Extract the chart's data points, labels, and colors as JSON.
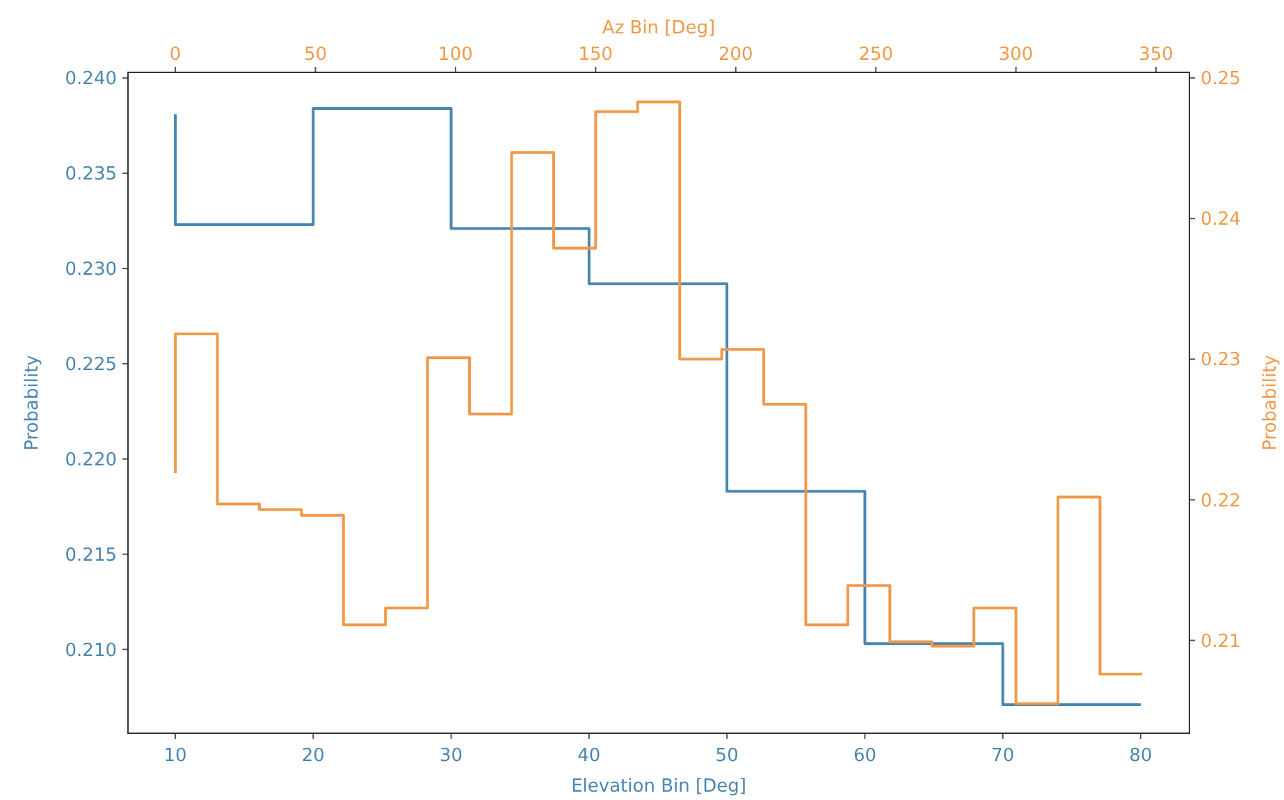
{
  "chart_data": [
    {
      "type": "step",
      "xlabel": "Elevation Bin [Deg]",
      "ylabel": "Probability",
      "xlim": [
        6.57,
        83.53
      ],
      "xticks": [
        10,
        20,
        30,
        40,
        50,
        60,
        70,
        80
      ],
      "ylim": [
        0.2056,
        0.2403
      ],
      "yticks": [
        {
          "value": 0.21,
          "label": "0.210"
        },
        {
          "value": 0.215,
          "label": "0.215"
        },
        {
          "value": 0.22,
          "label": "0.220"
        },
        {
          "value": 0.225,
          "label": "0.225"
        },
        {
          "value": 0.23,
          "label": "0.230"
        },
        {
          "value": 0.235,
          "label": "0.235"
        },
        {
          "value": 0.24,
          "label": "0.240"
        }
      ],
      "series": [
        {
          "color": "#4a87b0",
          "x": [
            10,
            20,
            30,
            40,
            50,
            60,
            70,
            80
          ],
          "values": [
            0.2381,
            0.2323,
            0.2384,
            0.2321,
            0.2292,
            0.2183,
            0.2103,
            0.2071
          ]
        }
      ]
    },
    {
      "type": "step",
      "xlabel": "Az Bin [Deg]",
      "ylabel": "Probability",
      "xlim": [
        -16.9,
        361.9
      ],
      "xticks": [
        0,
        50,
        100,
        150,
        200,
        250,
        300,
        350
      ],
      "ylim": [
        0.2034,
        0.2504
      ],
      "yticks": [
        0.21,
        0.22,
        0.23,
        0.24,
        0.25
      ],
      "series": [
        {
          "color": "#f09a4a",
          "x": [
            0,
            15,
            30,
            45,
            60,
            75,
            90,
            105,
            120,
            135,
            150,
            165,
            180,
            195,
            210,
            225,
            240,
            255,
            270,
            285,
            300,
            315,
            330,
            345
          ],
          "values": [
            0.2219,
            0.2318,
            0.2197,
            0.2193,
            0.2189,
            0.2111,
            0.2123,
            0.2301,
            0.2261,
            0.2447,
            0.2379,
            0.2476,
            0.2483,
            0.23,
            0.2307,
            0.2268,
            0.2111,
            0.2139,
            0.2099,
            0.2096,
            0.2123,
            0.2055,
            0.2202,
            0.2076
          ]
        }
      ]
    }
  ]
}
